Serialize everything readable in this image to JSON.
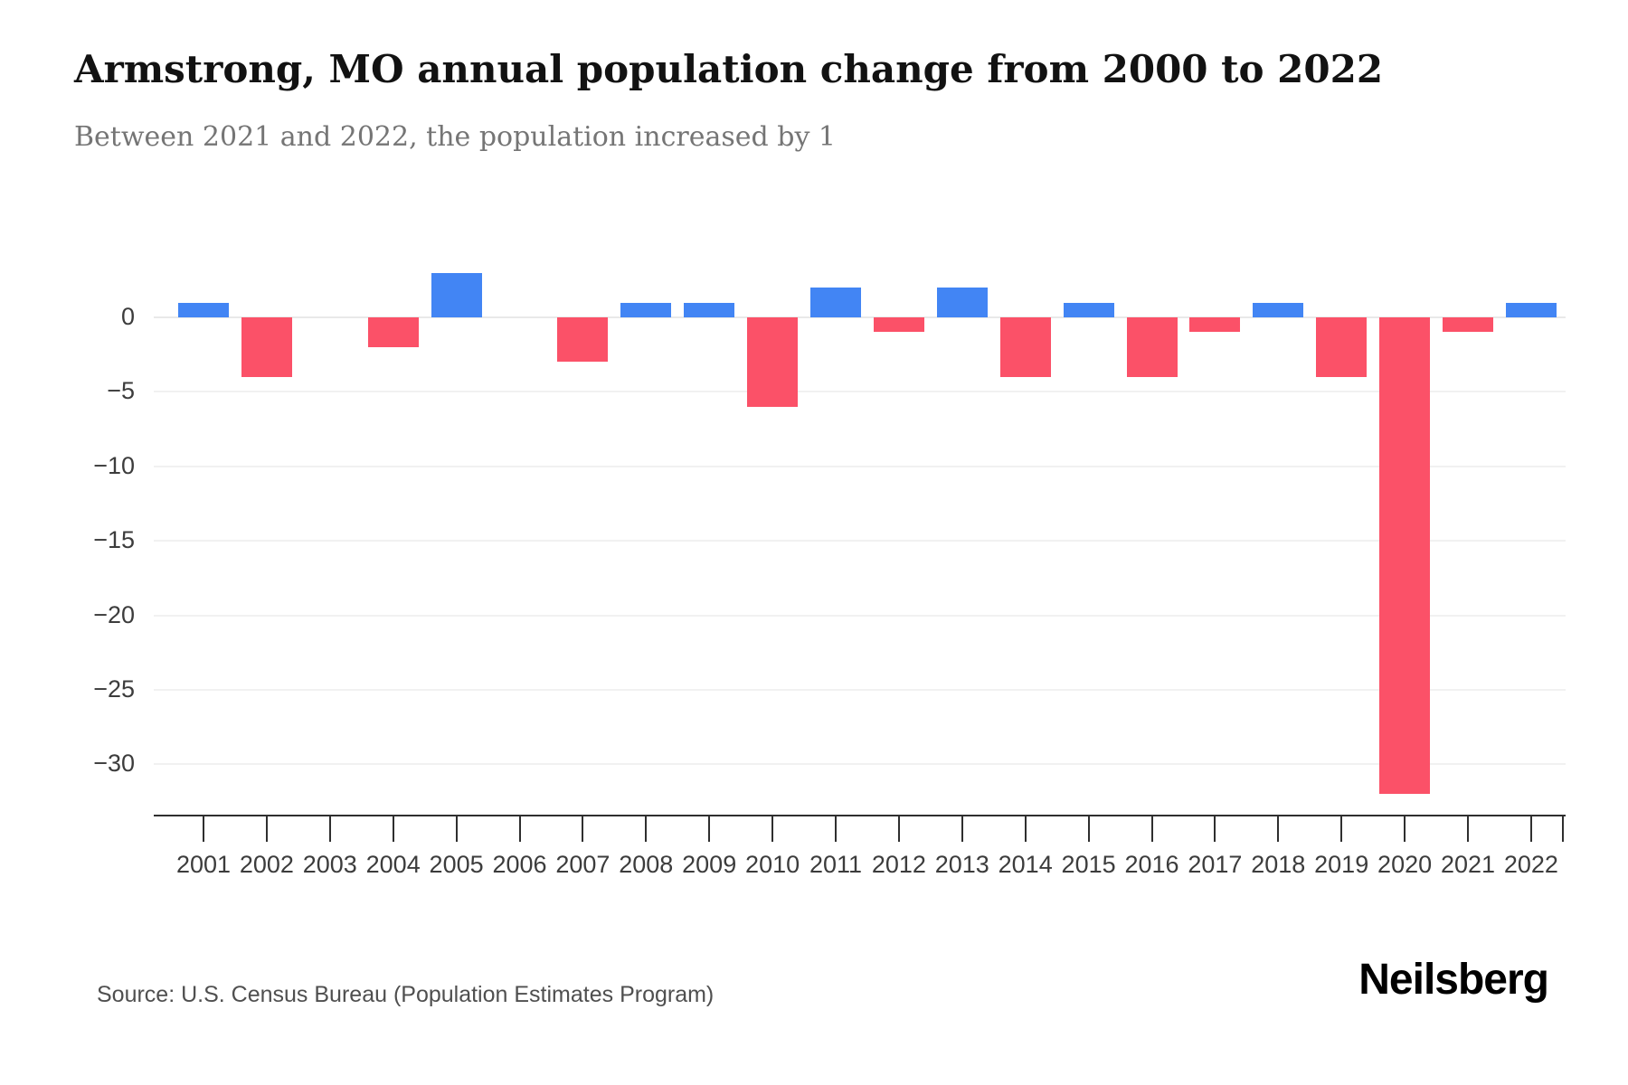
{
  "title": "Armstrong, MO annual population change from 2000 to 2022",
  "subtitle": "Between 2021 and 2022, the population increased by 1",
  "source": "Source: U.S. Census Bureau (Population Estimates Program)",
  "logo": "Neilsberg",
  "colors": {
    "positive": "#4285f4",
    "negative": "#fb5168",
    "gridline": "#f1f1f1",
    "zero_line": "#e9e9e9",
    "axis": "#2f2f2f",
    "title_text": "#121212",
    "subtitle_text": "#757575",
    "tick_text": "#3c3c3c"
  },
  "chart_data": {
    "type": "bar",
    "title": "Armstrong, MO annual population change from 2000 to 2022",
    "xlabel": "",
    "ylabel": "",
    "categories": [
      "2001",
      "2002",
      "2003",
      "2004",
      "2005",
      "2006",
      "2007",
      "2008",
      "2009",
      "2010",
      "2011",
      "2012",
      "2013",
      "2014",
      "2015",
      "2016",
      "2017",
      "2018",
      "2019",
      "2020",
      "2021",
      "2022"
    ],
    "values": [
      1,
      -4,
      0,
      -2,
      3,
      0,
      -3,
      1,
      1,
      -6,
      2,
      -1,
      2,
      -4,
      1,
      -4,
      -1,
      1,
      -4,
      -32,
      -1,
      1
    ],
    "yticks": [
      0,
      -5,
      -10,
      -15,
      -20,
      -25,
      -30
    ],
    "ytick_labels": [
      "0",
      "−5",
      "−10",
      "−15",
      "−20",
      "−25",
      "−30"
    ],
    "ylim": [
      -33.4,
      5.8
    ],
    "grid": true,
    "legend": "none",
    "positive_color": "#4285f4",
    "negative_color": "#fb5168"
  }
}
